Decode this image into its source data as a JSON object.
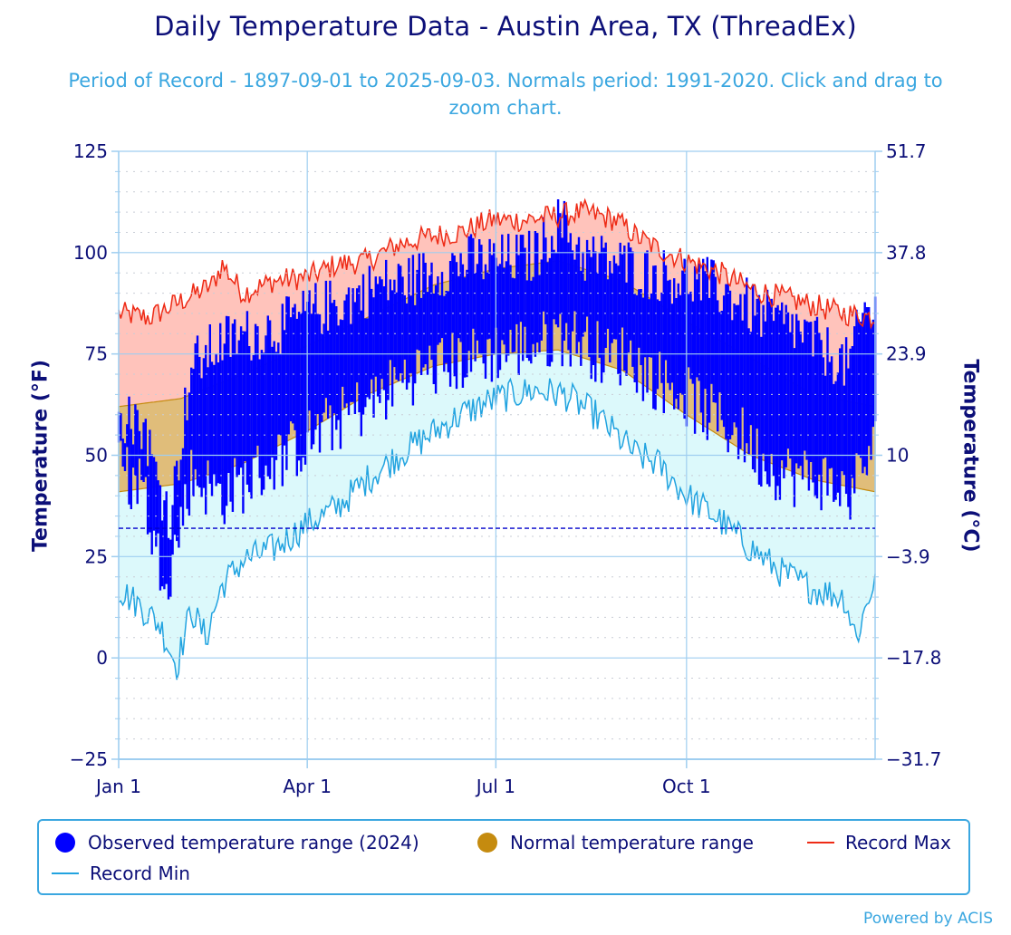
{
  "chart_data": {
    "type": "area",
    "title": "Daily Temperature Data - Austin Area, TX (ThreadEx)",
    "subtitle": "Period of Record - 1897-09-01 to 2025-09-03. Normals period: 1991-2020. Click and drag to zoom chart.",
    "ylabel_left": "Temperature (°F)",
    "ylabel_right": "Temperature (°C)",
    "ylim": [
      -25,
      125
    ],
    "y_ticks_f": [
      "125",
      "100",
      "75",
      "50",
      "25",
      "0",
      "−25"
    ],
    "y_ticks_c": [
      "51.7",
      "37.8",
      "23.9",
      "10",
      "−3.9",
      "−17.8",
      "−31.7"
    ],
    "x_ticks": [
      {
        "label": "Jan 1",
        "day": 0
      },
      {
        "label": "Apr 1",
        "day": 91
      },
      {
        "label": "Jul 1",
        "day": 182
      },
      {
        "label": "Oct 1",
        "day": 274
      }
    ],
    "days_in_year": 366,
    "freezing_line_f": 32,
    "record_max_anchors": [
      [
        0,
        85
      ],
      [
        15,
        84
      ],
      [
        30,
        88
      ],
      [
        45,
        92
      ],
      [
        50,
        97
      ],
      [
        60,
        90
      ],
      [
        75,
        93
      ],
      [
        91,
        94
      ],
      [
        105,
        97
      ],
      [
        120,
        98
      ],
      [
        135,
        102
      ],
      [
        150,
        104
      ],
      [
        165,
        105
      ],
      [
        180,
        108
      ],
      [
        195,
        108
      ],
      [
        210,
        109
      ],
      [
        225,
        110
      ],
      [
        240,
        108
      ],
      [
        250,
        104
      ],
      [
        260,
        101
      ],
      [
        274,
        98
      ],
      [
        290,
        95
      ],
      [
        305,
        91
      ],
      [
        320,
        89
      ],
      [
        335,
        87
      ],
      [
        350,
        85
      ],
      [
        365,
        84
      ]
    ],
    "record_min_anchors": [
      [
        0,
        17
      ],
      [
        10,
        13
      ],
      [
        20,
        8
      ],
      [
        28,
        -2
      ],
      [
        35,
        12
      ],
      [
        42,
        5
      ],
      [
        50,
        18
      ],
      [
        60,
        24
      ],
      [
        75,
        27
      ],
      [
        91,
        33
      ],
      [
        105,
        37
      ],
      [
        120,
        44
      ],
      [
        135,
        50
      ],
      [
        150,
        55
      ],
      [
        165,
        60
      ],
      [
        182,
        64
      ],
      [
        200,
        66
      ],
      [
        215,
        65
      ],
      [
        230,
        60
      ],
      [
        240,
        55
      ],
      [
        250,
        50
      ],
      [
        260,
        48
      ],
      [
        274,
        40
      ],
      [
        290,
        34
      ],
      [
        305,
        27
      ],
      [
        320,
        21
      ],
      [
        335,
        17
      ],
      [
        350,
        15
      ],
      [
        356,
        5
      ],
      [
        365,
        20
      ]
    ],
    "normal_max_anchors": [
      [
        0,
        62
      ],
      [
        30,
        64
      ],
      [
        60,
        70
      ],
      [
        91,
        77
      ],
      [
        120,
        84
      ],
      [
        152,
        92
      ],
      [
        182,
        96
      ],
      [
        212,
        98
      ],
      [
        243,
        93
      ],
      [
        274,
        83
      ],
      [
        305,
        74
      ],
      [
        335,
        65
      ],
      [
        365,
        62
      ]
    ],
    "normal_min_anchors": [
      [
        0,
        41
      ],
      [
        30,
        43
      ],
      [
        60,
        48
      ],
      [
        91,
        56
      ],
      [
        120,
        65
      ],
      [
        152,
        72
      ],
      [
        182,
        75
      ],
      [
        212,
        76
      ],
      [
        243,
        71
      ],
      [
        274,
        60
      ],
      [
        305,
        50
      ],
      [
        335,
        44
      ],
      [
        365,
        41
      ]
    ],
    "observed_2024_anchors": [
      [
        0,
        47,
        60
      ],
      [
        12,
        42,
        58
      ],
      [
        18,
        25,
        45
      ],
      [
        25,
        22,
        35
      ],
      [
        35,
        45,
        72
      ],
      [
        50,
        40,
        78
      ],
      [
        65,
        45,
        80
      ],
      [
        80,
        50,
        82
      ],
      [
        95,
        55,
        86
      ],
      [
        110,
        60,
        88
      ],
      [
        125,
        64,
        92
      ],
      [
        140,
        70,
        93
      ],
      [
        155,
        72,
        96
      ],
      [
        170,
        74,
        98
      ],
      [
        185,
        76,
        98
      ],
      [
        200,
        77,
        99
      ],
      [
        213,
        80,
        108
      ],
      [
        225,
        78,
        99
      ],
      [
        235,
        74,
        98
      ],
      [
        245,
        75,
        97
      ],
      [
        255,
        70,
        95
      ],
      [
        270,
        66,
        94
      ],
      [
        285,
        60,
        92
      ],
      [
        300,
        55,
        88
      ],
      [
        312,
        48,
        84
      ],
      [
        325,
        45,
        82
      ],
      [
        340,
        44,
        76
      ],
      [
        352,
        40,
        72
      ],
      [
        360,
        48,
        86
      ],
      [
        365,
        52,
        85
      ]
    ],
    "legend": {
      "observed": "Observed temperature range (2024)",
      "normal": "Normal temperature range",
      "record_max": "Record Max",
      "record_min": "Record Min"
    },
    "colors": {
      "observed": "#0000ff",
      "normal_fill": "#e0bd7a",
      "normal_edge": "#c58b0f",
      "record_max_line": "#ee2b16",
      "record_max_fill": "#ffc3bb",
      "record_min_line": "#22a3e0",
      "record_min_fill": "#dcf9fb",
      "freeze": "#0000cc",
      "grid": "#9fcef0",
      "axis_text": "#0c0f78"
    }
  },
  "credits": "Powered by ACIS"
}
